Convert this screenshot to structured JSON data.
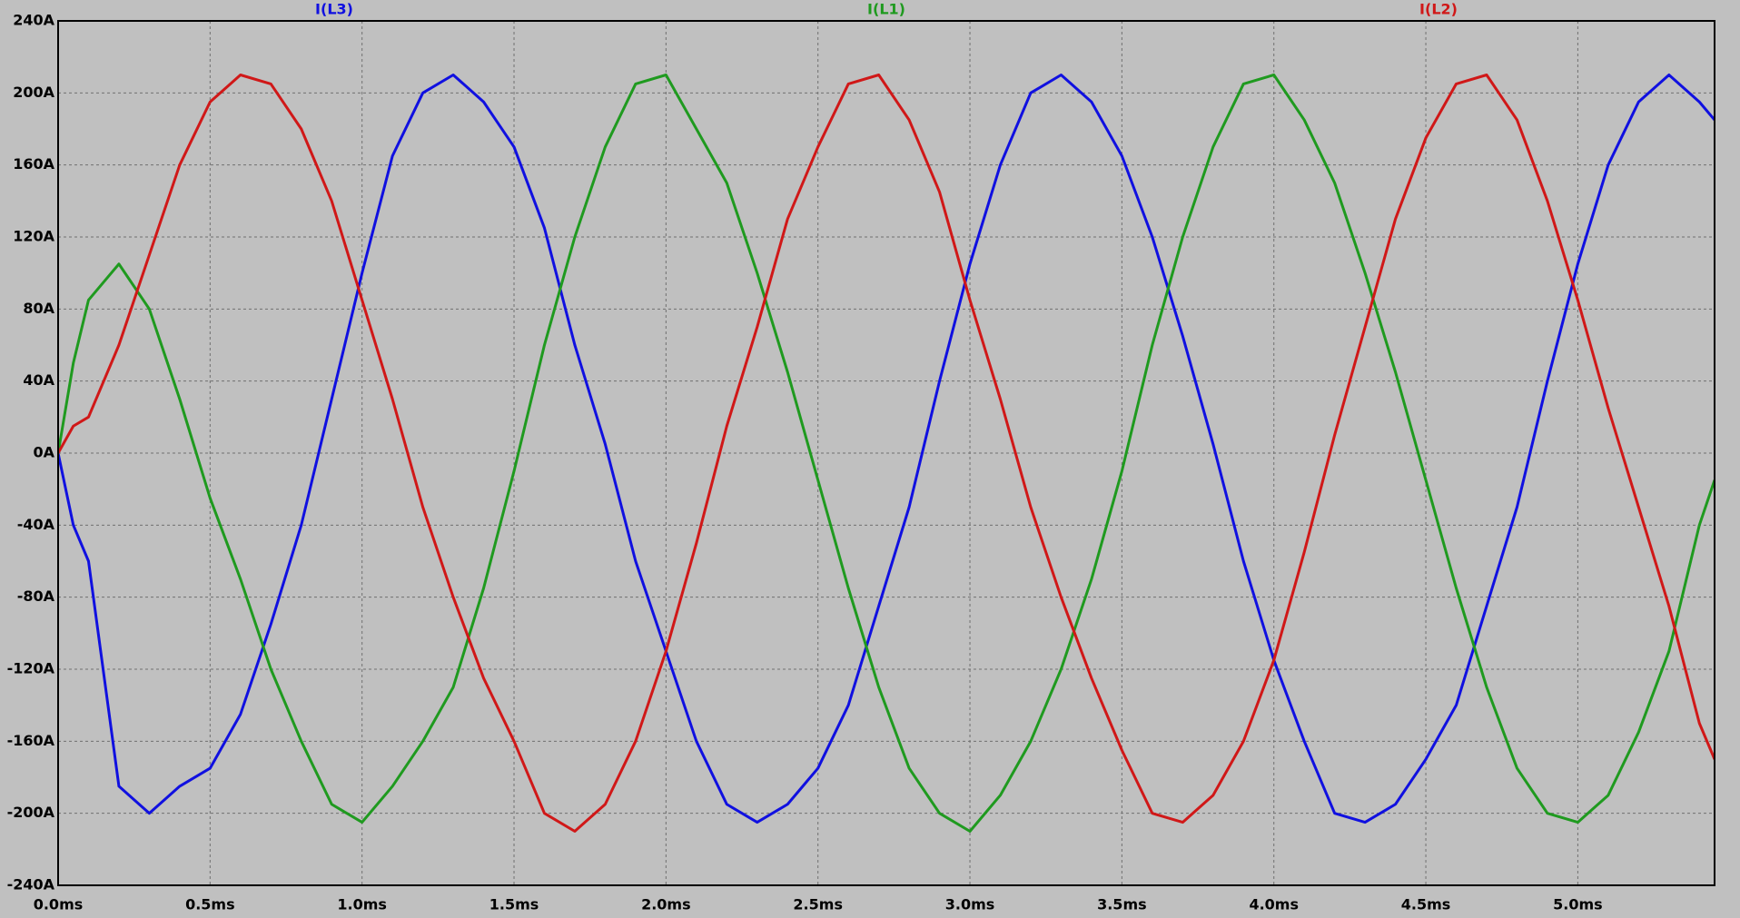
{
  "chart_data": {
    "type": "line",
    "x": [
      0,
      0.05,
      0.1,
      0.2,
      0.3,
      0.4,
      0.5,
      0.6,
      0.7,
      0.8,
      0.9,
      1.0,
      1.1,
      1.2,
      1.3,
      1.4,
      1.5,
      1.6,
      1.7,
      1.8,
      1.9,
      2.0,
      2.1,
      2.2,
      2.3,
      2.4,
      2.5,
      2.6,
      2.7,
      2.8,
      2.9,
      3.0,
      3.1,
      3.2,
      3.3,
      3.4,
      3.5,
      3.6,
      3.7,
      3.8,
      3.9,
      4.0,
      4.1,
      4.2,
      4.3,
      4.4,
      4.5,
      4.6,
      4.7,
      4.8,
      4.9,
      5.0,
      5.1,
      5.2,
      5.3,
      5.4,
      5.45
    ],
    "series": [
      {
        "name": "I(L3)",
        "color": "#1010e0",
        "values": [
          0,
          -40,
          -60,
          -185,
          -200,
          -185,
          -175,
          -145,
          -95,
          -40,
          30,
          100,
          165,
          200,
          210,
          195,
          170,
          125,
          60,
          5,
          -60,
          -110,
          -160,
          -195,
          -205,
          -195,
          -175,
          -140,
          -85,
          -30,
          40,
          105,
          160,
          200,
          210,
          195,
          165,
          120,
          65,
          5,
          -60,
          -115,
          -160,
          -200,
          -205,
          -195,
          -170,
          -140,
          -85,
          -30,
          40,
          105,
          160,
          195,
          210,
          195,
          185
        ]
      },
      {
        "name": "I(L1)",
        "color": "#1f9a1f",
        "values": [
          0,
          50,
          85,
          105,
          80,
          30,
          -25,
          -70,
          -120,
          -160,
          -195,
          -205,
          -185,
          -160,
          -130,
          -75,
          -10,
          60,
          120,
          170,
          205,
          210,
          180,
          150,
          100,
          45,
          -15,
          -75,
          -130,
          -175,
          -200,
          -210,
          -190,
          -160,
          -120,
          -70,
          -10,
          60,
          120,
          170,
          205,
          210,
          185,
          150,
          100,
          45,
          -15,
          -75,
          -130,
          -175,
          -200,
          -205,
          -190,
          -155,
          -110,
          -40,
          -15
        ]
      },
      {
        "name": "I(L2)",
        "color": "#d01818",
        "values": [
          0,
          15,
          20,
          60,
          110,
          160,
          195,
          210,
          205,
          180,
          140,
          85,
          30,
          -30,
          -80,
          -125,
          -160,
          -200,
          -210,
          -195,
          -160,
          -110,
          -50,
          15,
          70,
          130,
          170,
          205,
          210,
          185,
          145,
          85,
          30,
          -30,
          -80,
          -125,
          -165,
          -200,
          -205,
          -190,
          -160,
          -115,
          -55,
          10,
          70,
          130,
          175,
          205,
          210,
          185,
          140,
          85,
          25,
          -30,
          -85,
          -150,
          -170
        ]
      }
    ],
    "xlim": [
      0,
      5.45
    ],
    "xticks": [
      {
        "value": 0,
        "label": "0.0ms"
      },
      {
        "value": 0.5,
        "label": "0.5ms"
      },
      {
        "value": 1.0,
        "label": "1.0ms"
      },
      {
        "value": 1.5,
        "label": "1.5ms"
      },
      {
        "value": 2.0,
        "label": "2.0ms"
      },
      {
        "value": 2.5,
        "label": "2.5ms"
      },
      {
        "value": 3.0,
        "label": "3.0ms"
      },
      {
        "value": 3.5,
        "label": "3.5ms"
      },
      {
        "value": 4.0,
        "label": "4.0ms"
      },
      {
        "value": 4.5,
        "label": "4.5ms"
      },
      {
        "value": 5.0,
        "label": "5.0ms"
      }
    ],
    "ylim": [
      -240,
      240
    ],
    "yticks": [
      {
        "value": -240,
        "label": "-240A"
      },
      {
        "value": -200,
        "label": "-200A"
      },
      {
        "value": -160,
        "label": "-160A"
      },
      {
        "value": -120,
        "label": "-120A"
      },
      {
        "value": -80,
        "label": "-80A"
      },
      {
        "value": -40,
        "label": "-40A"
      },
      {
        "value": 0,
        "label": "0A"
      },
      {
        "value": 40,
        "label": "40A"
      },
      {
        "value": 80,
        "label": "80A"
      },
      {
        "value": 120,
        "label": "120A"
      },
      {
        "value": 160,
        "label": "160A"
      },
      {
        "value": 200,
        "label": "200A"
      },
      {
        "value": 240,
        "label": "240A"
      }
    ],
    "grid": true
  }
}
